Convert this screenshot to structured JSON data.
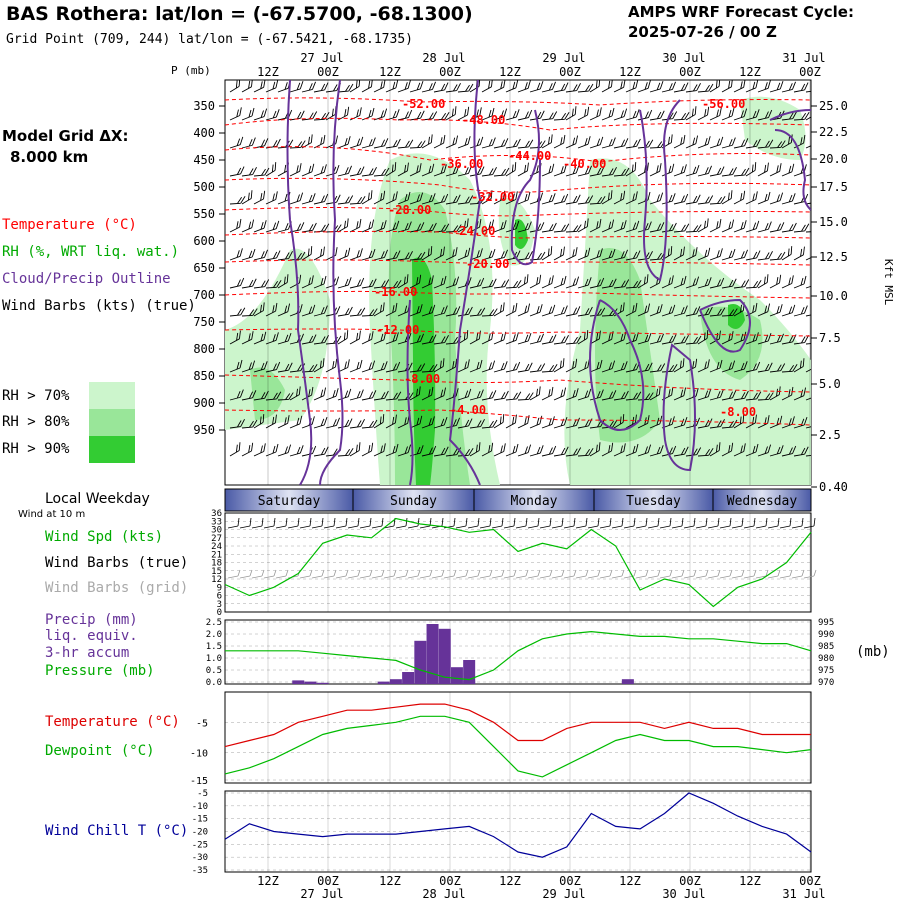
{
  "header": {
    "station": "BAS Rothera:  lat/lon = (-67.5700, -68.1300)",
    "gridpoint": "Grid Point (709, 244) lat/lon = (-67.5421, -68.1735)",
    "cycle_label": "AMPS WRF Forecast Cycle:",
    "cycle_value": "2025-07-26 / 00  Z",
    "model_grid": "Model Grid ΔX:",
    "model_dx": "8.000 km"
  },
  "legend": {
    "temperature": "Temperature (°C)",
    "rh": "RH (%, WRT liq. wat.)",
    "cloud": "Cloud/Precip Outline",
    "wind_barbs": "Wind Barbs (kts) (true)",
    "rh70": "RH > 70%",
    "rh80": "RH > 80%",
    "rh90": "RH > 90%",
    "colors": {
      "rh70": "#ccf5cc",
      "rh80": "#99e699",
      "rh90": "#33cc33",
      "temp": "#ff0000",
      "cloud": "#663399"
    }
  },
  "time_axis": {
    "top_labels": [
      "12Z",
      "00Z",
      "12Z",
      "00Z",
      "12Z",
      "00Z",
      "12Z",
      "00Z",
      "12Z",
      "00Z"
    ],
    "dates": [
      "27 Jul",
      "28 Jul",
      "29 Jul",
      "30 Jul",
      "31 Jul"
    ]
  },
  "upper_axes": {
    "p_label": "P (mb)",
    "pressure": [
      "350",
      "400",
      "450",
      "500",
      "550",
      "600",
      "650",
      "700",
      "750",
      "800",
      "850",
      "900",
      "950"
    ],
    "height": [
      "25.0",
      "22.5",
      "20.0",
      "17.5",
      "15.0",
      "12.5",
      "10.0",
      "7.5",
      "5.0",
      "2.5",
      "0.40"
    ],
    "height_unit": "Kft MSL"
  },
  "temp_contours": [
    {
      "text": "-52.00",
      "color": "#ff0000"
    },
    {
      "text": "-48.00",
      "color": "#ff0000"
    },
    {
      "text": "-56.00",
      "color": "#ff0000"
    },
    {
      "text": "-44.00",
      "color": "#ff0000"
    },
    {
      "text": "-36.00",
      "color": "#ff0000"
    },
    {
      "text": "-40.00",
      "color": "#ff0000"
    },
    {
      "text": "-32.00",
      "color": "#ff0000"
    },
    {
      "text": "-28.00",
      "color": "#ff0000"
    },
    {
      "text": "-24.00",
      "color": "#ff0000"
    },
    {
      "text": "-20.00",
      "color": "#ff0000"
    },
    {
      "text": "-16.00",
      "color": "#ff0000"
    },
    {
      "text": "-12.00",
      "color": "#ff0000"
    },
    {
      "text": "-8.00",
      "color": "#ff0000"
    },
    {
      "text": "-4.00",
      "color": "#ff0000"
    },
    {
      "text": "-8.00",
      "color": "#ff0000"
    }
  ],
  "weekday": {
    "title": "Local Weekday",
    "note": "Wind at 10 m",
    "days": [
      "Saturday",
      "Sunday",
      "Monday",
      "Tuesday",
      "Wednesday"
    ]
  },
  "wind_panel": {
    "spd_label": "Wind Spd (kts)",
    "barbs_true": "Wind Barbs (true)",
    "barbs_grid": "Wind Barbs (grid)",
    "ticks": [
      "36",
      "33",
      "30",
      "27",
      "24",
      "21",
      "18",
      "15",
      "12",
      "9",
      "6",
      "3",
      "0"
    ]
  },
  "precip_panel": {
    "precip_label": "Precip (mm)",
    "liq": "liq. equiv.",
    "accum": "3-hr accum",
    "pressure_label": "Pressure (mb)",
    "unit": "(mb)",
    "left_ticks": [
      "2.5",
      "2.0",
      "1.5",
      "1.0",
      "0.5",
      "0.0"
    ],
    "right_ticks": [
      "995",
      "990",
      "985",
      "980",
      "975",
      "970"
    ]
  },
  "temp_panel": {
    "temp_label": "Temperature (°C)",
    "dew_label": "Dewpoint (°C)",
    "ticks": [
      "-5",
      "-10",
      "-15"
    ]
  },
  "chill_panel": {
    "label": "Wind Chill T (°C)",
    "ticks": [
      "-5",
      "-10",
      "-15",
      "-20",
      "-25",
      "-30",
      "-35"
    ]
  },
  "chart_data": [
    {
      "type": "line",
      "title": "Wind Spd (kts)",
      "x_hours": [
        0,
        6,
        12,
        18,
        24,
        30,
        36,
        42,
        48,
        54,
        60,
        66,
        72,
        78,
        84,
        90,
        96,
        102,
        108,
        114,
        120,
        126,
        132,
        138,
        144
      ],
      "series": [
        {
          "name": "Wind Spd (kts)",
          "color": "#00bb00",
          "values": [
            10,
            6,
            9,
            14,
            25,
            28,
            27,
            34,
            32,
            31,
            29,
            30,
            22,
            25,
            23,
            30,
            24,
            8,
            12,
            10,
            2,
            9,
            12,
            18,
            29
          ]
        }
      ],
      "ylim": [
        0,
        36
      ]
    },
    {
      "type": "bar",
      "title": "Precip (mm)",
      "x_hours": [
        18,
        21,
        24,
        39,
        42,
        45,
        48,
        51,
        54,
        57,
        60,
        60,
        99
      ],
      "values": [
        0.15,
        0.1,
        0.05,
        0.1,
        0.2,
        0.5,
        1.8,
        2.5,
        2.3,
        0.7,
        0.15,
        1.0,
        0.2
      ],
      "ylim": [
        0,
        2.5
      ]
    },
    {
      "type": "line",
      "title": "Pressure (mb)",
      "x_hours": [
        0,
        6,
        12,
        18,
        24,
        30,
        36,
        42,
        48,
        54,
        60,
        66,
        72,
        78,
        84,
        90,
        96,
        102,
        108,
        114,
        120,
        126,
        132,
        138,
        144
      ],
      "series": [
        {
          "name": "Pressure (mb)",
          "color": "#00bb00",
          "values": [
            983,
            983,
            983,
            983,
            982,
            981,
            980,
            979,
            975,
            972,
            971,
            975,
            983,
            988,
            990,
            991,
            990,
            989,
            989,
            988,
            988,
            987,
            986,
            986,
            983
          ]
        }
      ],
      "ylim": [
        970,
        995
      ]
    },
    {
      "type": "line",
      "title": "Temperature / Dewpoint (°C)",
      "x_hours": [
        0,
        6,
        12,
        18,
        24,
        30,
        36,
        42,
        48,
        54,
        60,
        66,
        72,
        78,
        84,
        90,
        96,
        102,
        108,
        114,
        120,
        126,
        132,
        138,
        144
      ],
      "series": [
        {
          "name": "Temperature (°C)",
          "color": "#dd0000",
          "values": [
            -9,
            -8,
            -7,
            -5,
            -4,
            -3,
            -3,
            -2.5,
            -2,
            -2,
            -3,
            -5,
            -8,
            -8,
            -6,
            -5,
            -5,
            -5,
            -6,
            -5,
            -6,
            -6,
            -7,
            -7,
            -7
          ]
        },
        {
          "name": "Dewpoint (°C)",
          "color": "#00bb00",
          "values": [
            -13.5,
            -12.5,
            -11,
            -9,
            -7,
            -6,
            -5.5,
            -5,
            -4,
            -4,
            -5,
            -9,
            -13,
            -14,
            -12,
            -10,
            -8,
            -7,
            -8,
            -8,
            -9,
            -9,
            -9.5,
            -10,
            -9.5
          ]
        }
      ],
      "ylim": [
        -15,
        0
      ]
    },
    {
      "type": "line",
      "title": "Wind Chill T (°C)",
      "x_hours": [
        0,
        6,
        12,
        18,
        24,
        30,
        36,
        42,
        48,
        54,
        60,
        66,
        72,
        78,
        84,
        90,
        96,
        102,
        108,
        114,
        120,
        126,
        132,
        138,
        144
      ],
      "series": [
        {
          "name": "Wind Chill T (°C)",
          "color": "#000099",
          "values": [
            -23,
            -17,
            -20,
            -21,
            -22,
            -21,
            -21,
            -21,
            -20,
            -19,
            -18,
            -22,
            -28,
            -30,
            -26,
            -13,
            -18,
            -19,
            -13,
            -5,
            -9,
            -14,
            -18,
            -21,
            -28
          ]
        }
      ],
      "ylim": [
        -35,
        -5
      ]
    }
  ]
}
